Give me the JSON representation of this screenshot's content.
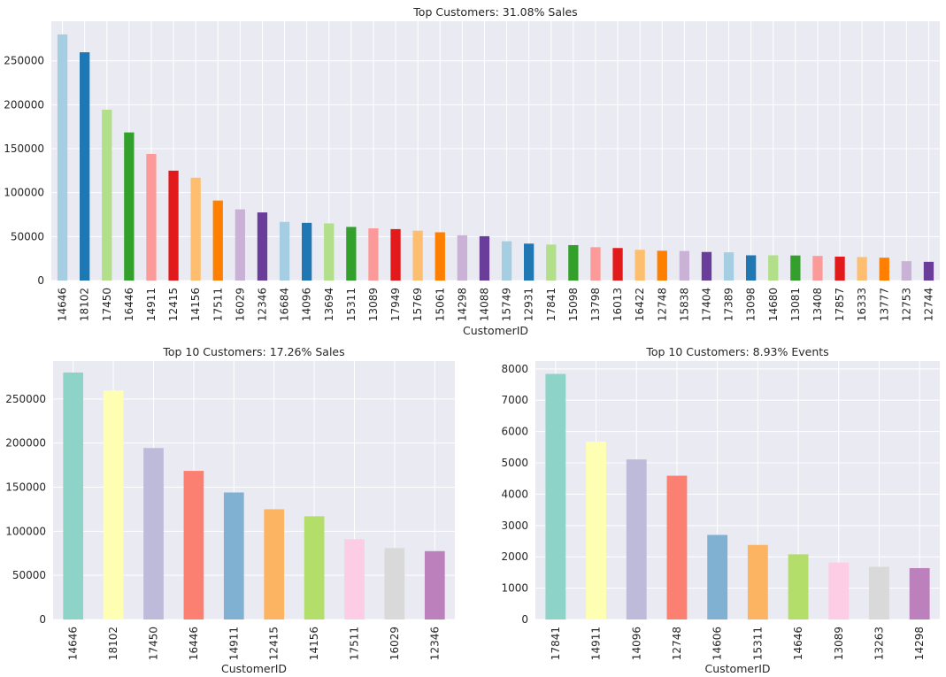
{
  "chart_data": [
    {
      "type": "bar",
      "title": "Top Customers: 31.08% Sales",
      "xlabel": "CustomerID",
      "ylabel": "",
      "ylim": [
        0,
        295000
      ],
      "yticks": [
        0,
        50000,
        100000,
        150000,
        200000,
        250000
      ],
      "categories": [
        "14646",
        "18102",
        "17450",
        "16446",
        "14911",
        "12415",
        "14156",
        "17511",
        "16029",
        "12346",
        "16684",
        "14096",
        "13694",
        "15311",
        "13089",
        "17949",
        "15769",
        "15061",
        "14298",
        "14088",
        "15749",
        "12931",
        "17841",
        "15098",
        "13798",
        "16013",
        "16422",
        "12748",
        "15838",
        "17404",
        "17389",
        "13098",
        "14680",
        "13081",
        "13408",
        "17857",
        "16333",
        "13777",
        "12753",
        "12744"
      ],
      "values": [
        280000,
        259700,
        194400,
        168500,
        144000,
        125000,
        117000,
        91000,
        81000,
        77500,
        66700,
        65600,
        65000,
        61000,
        59400,
        58500,
        56700,
        54900,
        51500,
        50400,
        44700,
        42000,
        40900,
        40300,
        37900,
        37000,
        35000,
        33900,
        33600,
        32500,
        32100,
        28700,
        28700,
        28500,
        28000,
        27200,
        26700,
        26000,
        22000,
        21300
      ],
      "colors": [
        "#a6cee3",
        "#1f78b4",
        "#b2df8a",
        "#33a02c",
        "#fb9a99",
        "#e31a1c",
        "#fdbf6f",
        "#ff7f00",
        "#cab2d6",
        "#6a3d9a"
      ]
    },
    {
      "type": "bar",
      "title": "Top 10 Customers: 17.26% Sales",
      "xlabel": "CustomerID",
      "ylabel": "",
      "ylim": [
        0,
        293000
      ],
      "yticks": [
        0,
        50000,
        100000,
        150000,
        200000,
        250000
      ],
      "categories": [
        "14646",
        "18102",
        "17450",
        "16446",
        "14911",
        "12415",
        "14156",
        "17511",
        "16029",
        "12346"
      ],
      "values": [
        280000,
        259700,
        194400,
        168500,
        144000,
        125000,
        117000,
        91000,
        81000,
        77500
      ],
      "colors": [
        "#8dd3c7",
        "#ffffb3",
        "#bebada",
        "#fb8072",
        "#80b1d3",
        "#fdb462",
        "#b3de69",
        "#fccde5",
        "#d9d9d9",
        "#bc80bd"
      ]
    },
    {
      "type": "bar",
      "title": "Top 10 Customers: 8.93% Events",
      "xlabel": "CustomerID",
      "ylabel": "",
      "ylim": [
        0,
        8250
      ],
      "yticks": [
        0,
        1000,
        2000,
        3000,
        4000,
        5000,
        6000,
        7000,
        8000
      ],
      "categories": [
        "17841",
        "14911",
        "14096",
        "12748",
        "14606",
        "15311",
        "14646",
        "13089",
        "13263",
        "14298"
      ],
      "values": [
        7840,
        5680,
        5110,
        4590,
        2700,
        2380,
        2080,
        1820,
        1680,
        1640
      ],
      "colors": [
        "#8dd3c7",
        "#ffffb3",
        "#bebada",
        "#fb8072",
        "#80b1d3",
        "#fdb462",
        "#b3de69",
        "#fccde5",
        "#d9d9d9",
        "#bc80bd"
      ]
    }
  ]
}
